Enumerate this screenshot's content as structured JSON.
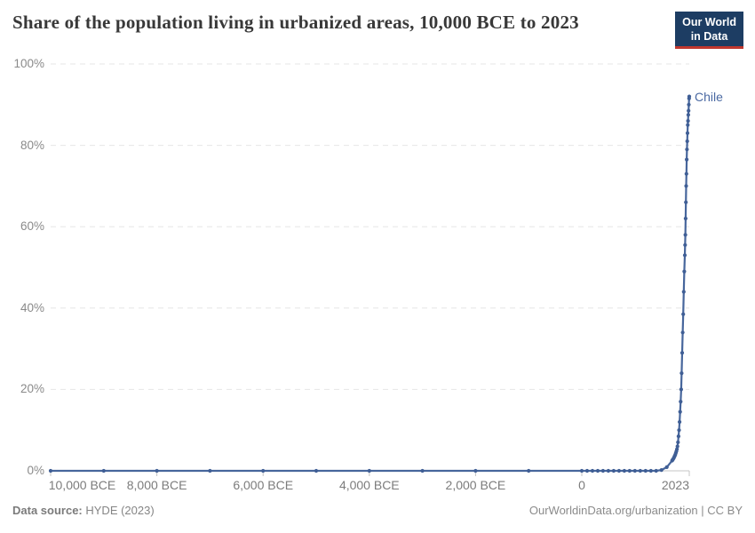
{
  "header": {
    "title": "Share of the population living in urbanized areas, 10,000 BCE to 2023",
    "logo_line1": "Our World",
    "logo_line2": "in Data"
  },
  "footer": {
    "source_label": "Data source:",
    "source_value": "HYDE (2023)",
    "attribution": "OurWorldinData.org/urbanization | CC BY"
  },
  "colors": {
    "line": "#47669c",
    "marker": "#3f5e95",
    "grid": "#e6e6e6",
    "axis": "#c4c4c4",
    "axis_text": "#8a8a8a",
    "logo_navy": "#1d3d63",
    "logo_red": "#c0372e",
    "entity_label": "#4a69a2"
  },
  "chart_data": {
    "type": "line",
    "title": "Share of the population living in urbanized areas, 10,000 BCE to 2023",
    "xlabel": "",
    "ylabel": "",
    "xlim": [
      -10000,
      2023
    ],
    "ylim": [
      0,
      100
    ],
    "grid": "horizontal-dashed",
    "legend": "inline-entity-label",
    "y_ticks": [
      {
        "value": 0,
        "label": "0%"
      },
      {
        "value": 20,
        "label": "20%"
      },
      {
        "value": 40,
        "label": "40%"
      },
      {
        "value": 60,
        "label": "60%"
      },
      {
        "value": 80,
        "label": "80%"
      },
      {
        "value": 100,
        "label": "100%"
      }
    ],
    "x_ticks": [
      {
        "year": -10000,
        "label": "10,000 BCE",
        "align": "start"
      },
      {
        "year": -8000,
        "label": "8,000 BCE",
        "align": "middle"
      },
      {
        "year": -6000,
        "label": "6,000 BCE",
        "align": "middle"
      },
      {
        "year": -4000,
        "label": "4,000 BCE",
        "align": "middle"
      },
      {
        "year": -2000,
        "label": "2,000 BCE",
        "align": "middle"
      },
      {
        "year": 0,
        "label": "0",
        "align": "middle"
      },
      {
        "year": 2023,
        "label": "2023",
        "align": "end"
      }
    ],
    "series": [
      {
        "name": "Chile",
        "color": "#47669c",
        "points": [
          [
            -10000,
            0
          ],
          [
            -9000,
            0
          ],
          [
            -8000,
            0
          ],
          [
            -7000,
            0
          ],
          [
            -6000,
            0
          ],
          [
            -5000,
            0
          ],
          [
            -4000,
            0
          ],
          [
            -3000,
            0
          ],
          [
            -2000,
            0
          ],
          [
            -1000,
            0
          ],
          [
            0,
            0
          ],
          [
            100,
            0
          ],
          [
            200,
            0
          ],
          [
            300,
            0
          ],
          [
            400,
            0
          ],
          [
            500,
            0
          ],
          [
            600,
            0
          ],
          [
            700,
            0
          ],
          [
            800,
            0
          ],
          [
            900,
            0
          ],
          [
            1000,
            0
          ],
          [
            1100,
            0
          ],
          [
            1200,
            0
          ],
          [
            1300,
            0
          ],
          [
            1400,
            0
          ],
          [
            1500,
            0.2
          ],
          [
            1600,
            0.9
          ],
          [
            1700,
            2.5
          ],
          [
            1710,
            2.7
          ],
          [
            1720,
            2.9
          ],
          [
            1730,
            3.1
          ],
          [
            1740,
            3.4
          ],
          [
            1750,
            3.7
          ],
          [
            1760,
            4.0
          ],
          [
            1770,
            4.4
          ],
          [
            1780,
            4.8
          ],
          [
            1790,
            5.3
          ],
          [
            1800,
            6.0
          ],
          [
            1810,
            7.0
          ],
          [
            1820,
            8.5
          ],
          [
            1830,
            10.0
          ],
          [
            1840,
            12.0
          ],
          [
            1850,
            14.5
          ],
          [
            1860,
            17.0
          ],
          [
            1870,
            20.0
          ],
          [
            1880,
            24.0
          ],
          [
            1890,
            29.0
          ],
          [
            1900,
            34.0
          ],
          [
            1910,
            38.5
          ],
          [
            1920,
            44.0
          ],
          [
            1930,
            49.0
          ],
          [
            1940,
            53.0
          ],
          [
            1945,
            55.5
          ],
          [
            1950,
            58.0
          ],
          [
            1955,
            62.0
          ],
          [
            1960,
            66.0
          ],
          [
            1965,
            70.0
          ],
          [
            1970,
            73.0
          ],
          [
            1975,
            76.5
          ],
          [
            1980,
            79.0
          ],
          [
            1985,
            81.0
          ],
          [
            1990,
            83.0
          ],
          [
            1995,
            85.0
          ],
          [
            2000,
            86.0
          ],
          [
            2005,
            87.5
          ],
          [
            2010,
            88.5
          ],
          [
            2015,
            90.0
          ],
          [
            2020,
            91.5
          ],
          [
            2023,
            92.0
          ]
        ]
      }
    ]
  }
}
